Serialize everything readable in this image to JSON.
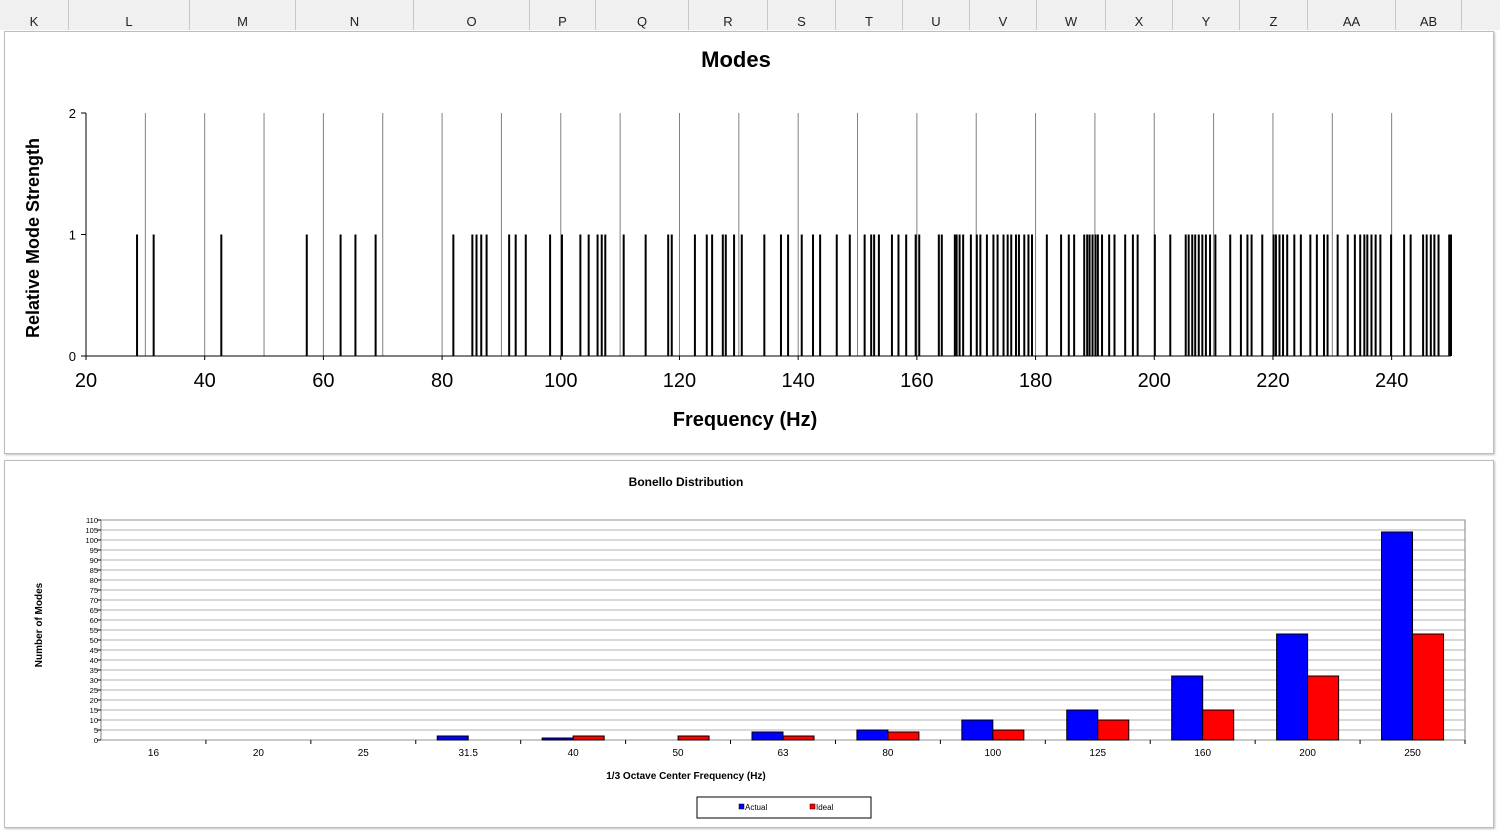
{
  "columns": [
    "K",
    "L",
    "M",
    "N",
    "O",
    "P",
    "Q",
    "R",
    "S",
    "T",
    "U",
    "V",
    "W",
    "X",
    "Y",
    "Z",
    "AA",
    "AB"
  ],
  "chart_data": [
    {
      "type": "bar",
      "title": "Modes",
      "xlabel": "Frequency (Hz)",
      "ylabel": "Relative Mode Strength",
      "xlim": [
        20,
        250
      ],
      "ylim": [
        0,
        2
      ],
      "x_ticks": [
        "20",
        "40",
        "60",
        "80",
        "100",
        "120",
        "140",
        "160",
        "180",
        "200",
        "220",
        "240"
      ],
      "y_ticks": [
        "0",
        "1",
        "2"
      ],
      "mode_value": 1,
      "x": [
        28.6,
        31.4,
        42.8,
        57.2,
        62.9,
        65.4,
        68.8,
        81.9,
        85.1,
        85.8,
        86.6,
        87.5,
        91.3,
        92.4,
        94.1,
        98.2,
        100.2,
        103.3,
        104.7,
        106.2,
        106.9,
        107.5,
        110.6,
        114.3,
        118.1,
        118.7,
        122.6,
        124.6,
        125.5,
        127.3,
        127.8,
        129.2,
        130.5,
        134.3,
        137.1,
        138.3,
        140.6,
        142.5,
        143.7,
        146.5,
        148.7,
        151.2,
        152.3,
        152.8,
        153.6,
        155.8,
        156.9,
        158.2,
        159.8,
        160.4,
        163.7,
        164.2,
        166.4,
        166.7,
        167.2,
        167.8,
        169.1,
        170.1,
        170.7,
        171.8,
        172.9,
        173.6,
        174.6,
        175.3,
        175.9,
        176.7,
        177.2,
        178.1,
        178.8,
        179.4,
        181.9,
        184.3,
        185.6,
        186.5,
        188.2,
        188.7,
        189.1,
        189.6,
        190.1,
        190.5,
        191.2,
        192.4,
        193.3,
        195.1,
        196.4,
        197.2,
        200.1,
        202.7,
        205.3,
        205.8,
        206.4,
        206.9,
        207.5,
        208.1,
        208.7,
        209.4,
        210.3,
        212.8,
        214.6,
        215.7,
        216.4,
        218.2,
        220.1,
        220.5,
        221.1,
        221.7,
        222.4,
        223.6,
        224.7,
        226.3,
        227.4,
        228.6,
        229.2,
        230.9,
        232.6,
        233.8,
        234.7,
        235.4,
        235.9,
        236.6,
        237.3,
        238.1,
        239.9,
        242.1,
        243.2,
        245.3,
        245.9,
        246.6,
        247.2,
        247.9,
        249.7,
        250.0
      ]
    },
    {
      "type": "bar",
      "title": "Bonello Distribution",
      "xlabel": "1/3 Octave Center Frequency (Hz)",
      "ylabel": "Number of Modes",
      "ylim": [
        0,
        110
      ],
      "y_ticks": [
        "0",
        "5",
        "10",
        "15",
        "20",
        "25",
        "30",
        "35",
        "40",
        "45",
        "50",
        "55",
        "60",
        "65",
        "70",
        "75",
        "80",
        "85",
        "90",
        "95",
        "100",
        "105",
        "110"
      ],
      "categories": [
        "16",
        "20",
        "25",
        "31.5",
        "40",
        "50",
        "63",
        "80",
        "100",
        "125",
        "160",
        "200",
        "250"
      ],
      "series": [
        {
          "name": "Actual",
          "color": "#0000ff",
          "values": [
            0,
            0,
            0,
            2,
            1,
            0,
            4,
            5,
            10,
            15,
            32,
            53,
            104
          ]
        },
        {
          "name": "Ideal",
          "color": "#ff0000",
          "values": [
            0,
            0,
            0,
            0,
            2,
            2,
            2,
            4,
            5,
            10,
            15,
            32,
            53
          ]
        }
      ],
      "legend": "bottom-center"
    }
  ]
}
